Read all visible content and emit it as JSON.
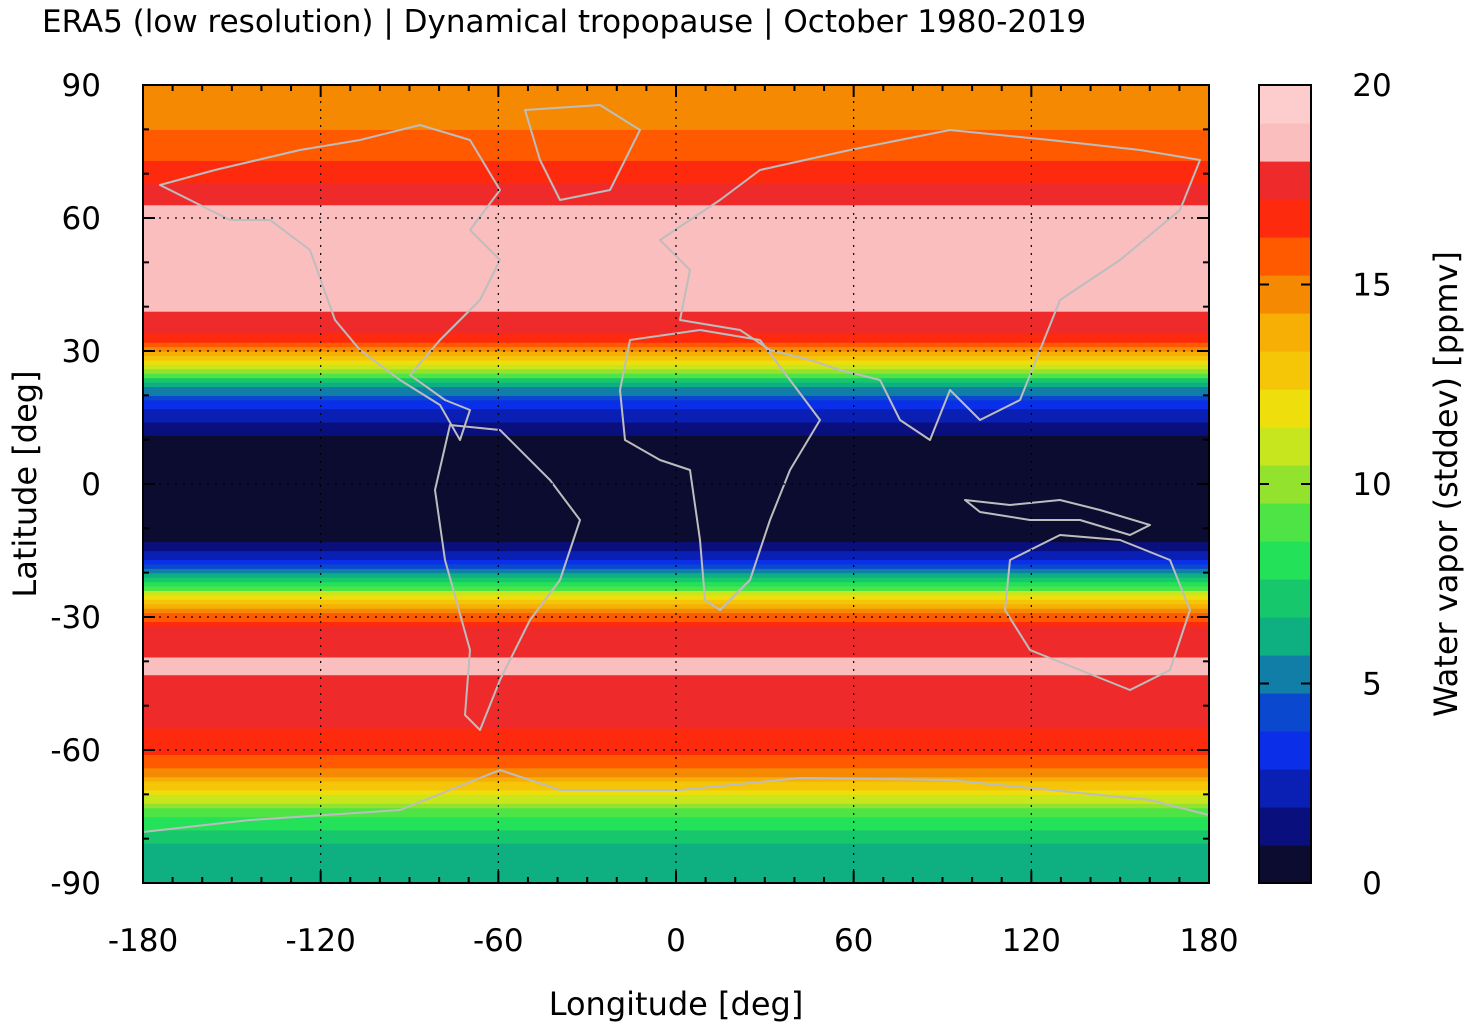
{
  "title": "ERA5 (low resolution) | Dynamical tropopause | October 1980-2019",
  "chart_data": {
    "type": "heatmap",
    "title": "ERA5 (low resolution) | Dynamical tropopause | October 1980-2019",
    "xlabel": "Longitude [deg]",
    "ylabel": "Latitude [deg]",
    "xlim": [
      -180,
      180
    ],
    "ylim": [
      -90,
      90
    ],
    "x_ticks": [
      -180,
      -120,
      -60,
      0,
      60,
      120,
      180
    ],
    "y_ticks": [
      -90,
      -60,
      -30,
      0,
      30,
      60,
      90
    ],
    "grid": true,
    "coastlines": true,
    "colorbar": {
      "label": "Water vapor (stddev) [ppmv]",
      "range": [
        0,
        20
      ],
      "ticks": [
        0,
        5,
        10,
        15,
        20
      ],
      "levels": 20,
      "colors": [
        "#0b0c30",
        "#0a0f7e",
        "#0a1fb4",
        "#0b2fe8",
        "#0a48d0",
        "#117ea8",
        "#0eaf80",
        "#17c76c",
        "#23e25a",
        "#4fe445",
        "#93e22e",
        "#c7e61e",
        "#eede0c",
        "#f5c508",
        "#f7ae05",
        "#f58a02",
        "#ff5a00",
        "#fe2a0e",
        "#ee2a2a",
        "#fbbebf",
        "#fdcdcd"
      ]
    },
    "latitude_profile": [
      {
        "lat": -90,
        "value": 6.2
      },
      {
        "lat": -85,
        "value": 6.0
      },
      {
        "lat": -80,
        "value": 7.2
      },
      {
        "lat": -75,
        "value": 9.0
      },
      {
        "lat": -70,
        "value": 12.0
      },
      {
        "lat": -65,
        "value": 15.5
      },
      {
        "lat": -60,
        "value": 17.5
      },
      {
        "lat": -50,
        "value": 18.5
      },
      {
        "lat": -40,
        "value": 19.2
      },
      {
        "lat": -32,
        "value": 18.0
      },
      {
        "lat": -27,
        "value": 14.0
      },
      {
        "lat": -22,
        "value": 8.0
      },
      {
        "lat": -17,
        "value": 3.0
      },
      {
        "lat": -12,
        "value": 0.5
      },
      {
        "lat": 0,
        "value": 0.3
      },
      {
        "lat": 10,
        "value": 0.5
      },
      {
        "lat": 16,
        "value": 2.5
      },
      {
        "lat": 22,
        "value": 6.0
      },
      {
        "lat": 27,
        "value": 12.0
      },
      {
        "lat": 32,
        "value": 17.5
      },
      {
        "lat": 40,
        "value": 19.3
      },
      {
        "lat": 60,
        "value": 19.5
      },
      {
        "lat": 70,
        "value": 17.5
      },
      {
        "lat": 80,
        "value": 16.0
      },
      {
        "lat": 90,
        "value": 15.5
      }
    ]
  }
}
